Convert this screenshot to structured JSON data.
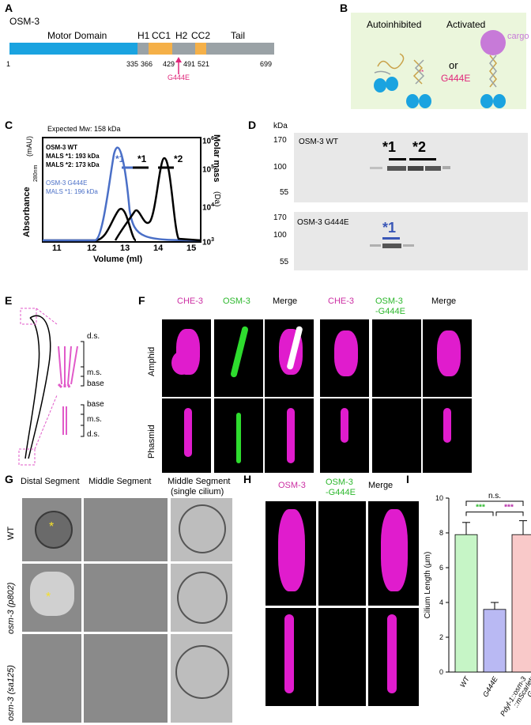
{
  "panels": {
    "A": "A",
    "B": "B",
    "C": "C",
    "D": "D",
    "E": "E",
    "F": "F",
    "G": "G",
    "H": "H",
    "I": "I"
  },
  "panelA": {
    "title": "OSM-3",
    "motor_label": "Motor Domain",
    "h1": "H1",
    "cc1": "CC1",
    "h2": "H2",
    "cc2": "CC2",
    "tail": "Tail",
    "ticks": [
      "1",
      "335",
      "366",
      "429",
      "491",
      "521",
      "699"
    ],
    "mutation": "G444E"
  },
  "panelB": {
    "autoinhibited": "Autoinhibited",
    "activated": "Activated",
    "or": "or",
    "mutation": "G444E",
    "cargo": "cargo",
    "stars": "**"
  },
  "panelC": {
    "expected": "Expected Mw: 158 kDa",
    "wt_title": "OSM-3 WT",
    "wt_m1": "MALS *1: 193 kDa",
    "wt_m2": "MALS *2: 173 kDa",
    "mut_title": "OSM-3 G444E",
    "mut_m1": "MALS *1: 196 kDa",
    "ylabel": "Absorbance",
    "ylabel_sub": "280nm",
    "ylabel_unit": "(mAU)",
    "y2label": "Molar mass",
    "y2unit": "(Da)",
    "xlabel": "Volume (ml)",
    "xticks": [
      "11",
      "12",
      "13",
      "14",
      "15"
    ],
    "y2ticks": [
      "10",
      "10",
      "10",
      "10"
    ],
    "y2exp": [
      "6",
      "5",
      "4",
      "3"
    ],
    "peak_labels": [
      "*1",
      "*1",
      "*2"
    ]
  },
  "panelD": {
    "unit": "kDa",
    "wt_title": "OSM-3 WT",
    "mut_title": "OSM-3 G444E",
    "ticks_top": [
      "170",
      "100",
      "55"
    ],
    "ticks_bottom": [
      "170",
      "100",
      "55"
    ],
    "peaks_top": [
      "*1",
      "*2"
    ],
    "peaks_bottom": [
      "*1"
    ]
  },
  "panelE": {
    "ds": "d.s.",
    "ms": "m.s.",
    "base": "base",
    "base2": "base",
    "ms2": "m.s.",
    "ds2": "d.s."
  },
  "panelF": {
    "h_che3": "CHE-3",
    "h_osm3": "OSM-3",
    "h_merge": "Merge",
    "h_che3b": "CHE-3",
    "h_osm3b_1": "OSM-3",
    "h_osm3b_2": "-G444E",
    "h_mergeb": "Merge",
    "row1": "Amphid",
    "row2": "Phasmid"
  },
  "panelG": {
    "col1": "Distal Segment",
    "col2": "Middle Segment",
    "col3_1": "Middle Segment",
    "col3_2": "(single cilium)",
    "row1": "WT",
    "row2": "osm-3 (p802)",
    "row3": "osm-3 (sa125)"
  },
  "panelH": {
    "h1": "OSM-3",
    "h2_1": "OSM-3",
    "h2_2": "-G444E",
    "h3": "Merge"
  },
  "chart_data": {
    "type": "bar",
    "categories": [
      "WT",
      "G444E",
      "Pdyf-1::osm-3::mScarlet; G444E"
    ],
    "values": [
      7.9,
      3.6,
      7.9
    ],
    "errors": [
      0.7,
      0.4,
      0.8
    ],
    "colors": [
      "#c6f5c6",
      "#b9b9f3",
      "#f9c9c9"
    ],
    "ylabel": "Cilium Length (μm)",
    "ylim": [
      0,
      10
    ],
    "yticks": [
      "0",
      "2",
      "4",
      "6",
      "8",
      "10"
    ],
    "sig": {
      "ns": "n.s.",
      "left": "***",
      "right": "***"
    },
    "sig_colors": {
      "left": "#2db82d",
      "right": "#b52aa6"
    }
  }
}
